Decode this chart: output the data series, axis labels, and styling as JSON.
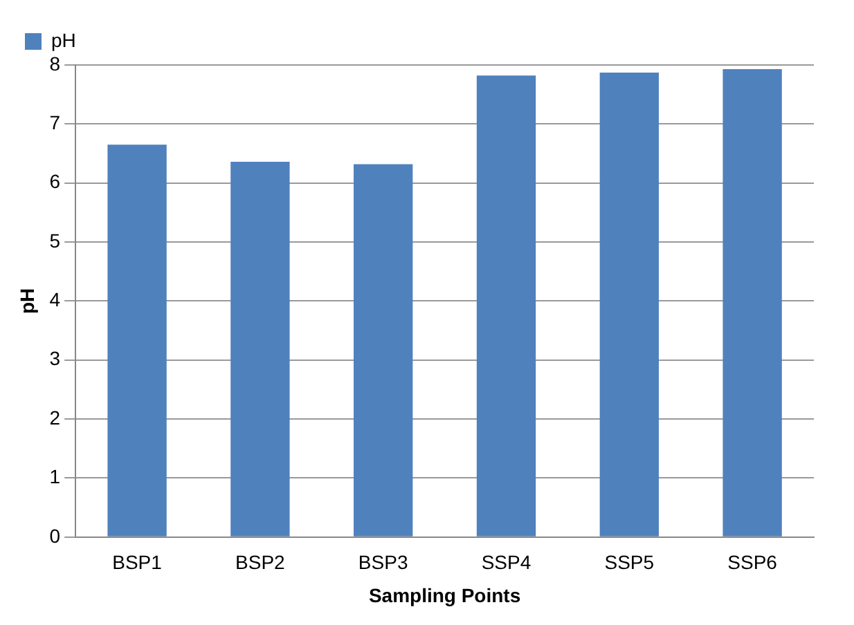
{
  "chart_data": {
    "type": "bar",
    "xlabel": "Sampling Points",
    "ylabel": "pH",
    "categories": [
      "BSP1",
      "BSP2",
      "BSP3",
      "SSP4",
      "SSP5",
      "SSP6"
    ],
    "series": [
      {
        "name": "pH",
        "color": "#4f81bd",
        "values": [
          6.65,
          6.36,
          6.32,
          7.82,
          7.87,
          7.93
        ]
      }
    ],
    "ylim": [
      0,
      8
    ],
    "yticks": [
      0,
      1,
      2,
      3,
      4,
      5,
      6,
      7,
      8
    ],
    "grid": "y",
    "legend": "top left"
  }
}
